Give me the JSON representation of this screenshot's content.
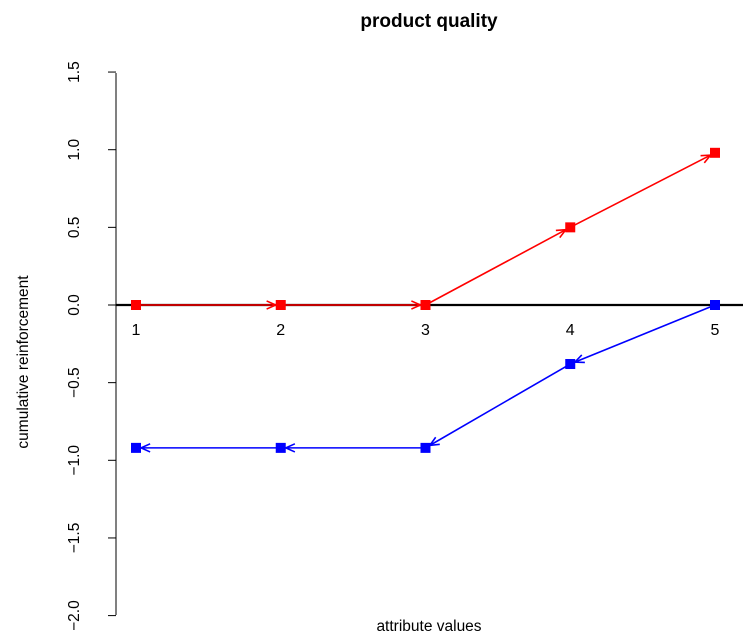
{
  "chart_data": {
    "type": "line",
    "title": "product quality",
    "xlabel": "attribute values",
    "ylabel": "cumulative reinforcement",
    "x": [
      1,
      2,
      3,
      4,
      5
    ],
    "x_tick_labels": [
      "1",
      "2",
      "3",
      "4",
      "5"
    ],
    "ylim": [
      -2.0,
      1.5
    ],
    "y_ticks": [
      -2.0,
      -1.5,
      -1.0,
      -0.5,
      0.0,
      0.5,
      1.0,
      1.5
    ],
    "y_tick_labels": [
      "−2.0",
      "−1.5",
      "−1.0",
      "−0.5",
      "0.0",
      "0.5",
      "1.0",
      "1.5"
    ],
    "reference_line": 0,
    "grid": false,
    "legend": "none",
    "series": [
      {
        "color": "#ff0000",
        "values": [
          0,
          0,
          0,
          0.5,
          0.98
        ],
        "arrow_direction": "toward-higher-x"
      },
      {
        "color": "#0000ff",
        "values": [
          -0.92,
          -0.92,
          -0.92,
          -0.38,
          0
        ],
        "arrow_direction": "toward-lower-x"
      }
    ]
  }
}
